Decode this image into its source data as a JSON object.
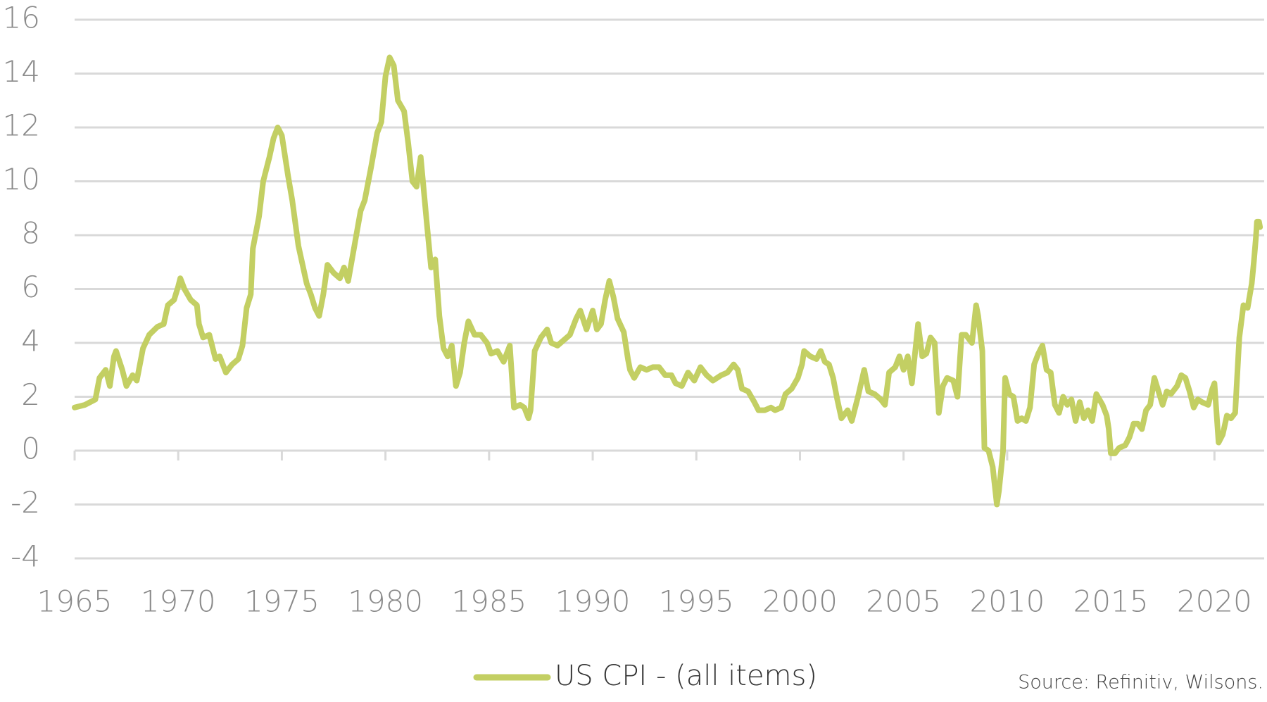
{
  "chart_data": {
    "type": "line",
    "x": [
      1965.0,
      1965.5,
      1966.0,
      1966.2,
      1966.5,
      1966.7,
      1966.9,
      1967.0,
      1967.3,
      1967.5,
      1967.8,
      1968.0,
      1968.3,
      1968.6,
      1969.0,
      1969.3,
      1969.5,
      1969.8,
      1970.0,
      1970.1,
      1970.3,
      1970.6,
      1970.9,
      1971.0,
      1971.2,
      1971.5,
      1971.8,
      1972.0,
      1972.3,
      1972.6,
      1972.9,
      1973.1,
      1973.3,
      1973.5,
      1973.6,
      1973.9,
      1974.1,
      1974.4,
      1974.6,
      1974.8,
      1975.0,
      1975.3,
      1975.5,
      1975.8,
      1976.0,
      1976.2,
      1976.4,
      1976.6,
      1976.8,
      1977.0,
      1977.2,
      1977.5,
      1977.8,
      1978.0,
      1978.2,
      1978.5,
      1978.8,
      1979.0,
      1979.3,
      1979.6,
      1979.8,
      1980.0,
      1980.2,
      1980.4,
      1980.6,
      1980.9,
      1981.1,
      1981.3,
      1981.5,
      1981.7,
      1982.0,
      1982.2,
      1982.4,
      1982.6,
      1982.8,
      1983.0,
      1983.2,
      1983.4,
      1983.6,
      1983.8,
      1984.0,
      1984.3,
      1984.6,
      1984.9,
      1985.1,
      1985.4,
      1985.7,
      1986.0,
      1986.2,
      1986.5,
      1986.7,
      1986.9,
      1987.0,
      1987.2,
      1987.5,
      1987.8,
      1988.0,
      1988.3,
      1988.6,
      1988.9,
      1989.2,
      1989.4,
      1989.7,
      1990.0,
      1990.2,
      1990.4,
      1990.6,
      1990.8,
      1991.0,
      1991.2,
      1991.5,
      1991.7,
      1991.8,
      1992.0,
      1992.3,
      1992.6,
      1992.9,
      1993.2,
      1993.5,
      1993.8,
      1994.0,
      1994.3,
      1994.6,
      1994.9,
      1995.2,
      1995.5,
      1995.8,
      1996.2,
      1996.5,
      1996.8,
      1997.0,
      1997.2,
      1997.5,
      1997.8,
      1998.0,
      1998.3,
      1998.6,
      1998.8,
      1999.1,
      1999.3,
      1999.6,
      1999.9,
      2000.1,
      2000.2,
      2000.5,
      2000.8,
      2001.0,
      2001.2,
      2001.4,
      2001.6,
      2001.8,
      2002.0,
      2002.3,
      2002.5,
      2002.8,
      2003.1,
      2003.3,
      2003.6,
      2003.9,
      2004.1,
      2004.3,
      2004.6,
      2004.8,
      2005.0,
      2005.2,
      2005.4,
      2005.7,
      2005.9,
      2006.1,
      2006.3,
      2006.5,
      2006.7,
      2006.9,
      2007.1,
      2007.4,
      2007.6,
      2007.8,
      2008.0,
      2008.3,
      2008.5,
      2008.6,
      2008.8,
      2008.9,
      2009.1,
      2009.3,
      2009.4,
      2009.5,
      2009.6,
      2009.8,
      2009.9,
      2010.1,
      2010.3,
      2010.5,
      2010.7,
      2010.9,
      2011.1,
      2011.3,
      2011.5,
      2011.7,
      2011.9,
      2012.1,
      2012.3,
      2012.5,
      2012.7,
      2012.9,
      2013.1,
      2013.3,
      2013.5,
      2013.7,
      2013.9,
      2014.1,
      2014.3,
      2014.6,
      2014.8,
      2014.9,
      2015.0,
      2015.2,
      2015.4,
      2015.7,
      2015.9,
      2016.1,
      2016.3,
      2016.5,
      2016.7,
      2016.9,
      2017.1,
      2017.3,
      2017.5,
      2017.7,
      2017.9,
      2018.2,
      2018.4,
      2018.6,
      2018.8,
      2019.0,
      2019.2,
      2019.4,
      2019.7,
      2019.9,
      2020.0,
      2020.2,
      2020.4,
      2020.6,
      2020.8,
      2021.0,
      2021.2,
      2021.4,
      2021.6,
      2021.8,
      2021.9,
      2022.0,
      2022.05,
      2022.15,
      2022.2
    ],
    "series": [
      {
        "name": "US CPI - (all items)",
        "color": "#c3cf63",
        "values": [
          1.6,
          1.7,
          1.9,
          2.7,
          3.0,
          2.4,
          3.5,
          3.7,
          3.0,
          2.4,
          2.8,
          2.6,
          3.8,
          4.3,
          4.6,
          4.7,
          5.4,
          5.6,
          6.1,
          6.4,
          6.0,
          5.6,
          5.4,
          4.7,
          4.2,
          4.3,
          3.4,
          3.5,
          2.9,
          3.2,
          3.4,
          3.9,
          5.3,
          5.8,
          7.5,
          8.7,
          10.0,
          10.9,
          11.6,
          12.0,
          11.7,
          10.2,
          9.3,
          7.6,
          6.9,
          6.2,
          5.8,
          5.3,
          5.0,
          5.8,
          6.9,
          6.6,
          6.4,
          6.8,
          6.3,
          7.6,
          8.9,
          9.3,
          10.5,
          11.8,
          12.2,
          13.9,
          14.6,
          14.3,
          13.0,
          12.6,
          11.4,
          10.0,
          9.8,
          10.9,
          8.4,
          6.8,
          7.1,
          5.0,
          3.8,
          3.5,
          3.9,
          2.4,
          2.9,
          4.0,
          4.8,
          4.3,
          4.3,
          4.0,
          3.6,
          3.7,
          3.3,
          3.9,
          1.6,
          1.7,
          1.6,
          1.2,
          1.5,
          3.7,
          4.2,
          4.5,
          4.0,
          3.9,
          4.1,
          4.3,
          4.9,
          5.2,
          4.5,
          5.2,
          4.5,
          4.7,
          5.6,
          6.3,
          5.7,
          4.9,
          4.4,
          3.4,
          3.0,
          2.7,
          3.1,
          3.0,
          3.1,
          3.1,
          2.8,
          2.8,
          2.5,
          2.4,
          2.9,
          2.6,
          3.1,
          2.8,
          2.6,
          2.8,
          2.9,
          3.2,
          3.0,
          2.3,
          2.2,
          1.8,
          1.5,
          1.5,
          1.6,
          1.5,
          1.6,
          2.1,
          2.3,
          2.7,
          3.2,
          3.7,
          3.5,
          3.4,
          3.7,
          3.3,
          3.2,
          2.7,
          1.9,
          1.2,
          1.5,
          1.1,
          2.0,
          3.0,
          2.2,
          2.1,
          1.9,
          1.7,
          2.9,
          3.1,
          3.5,
          3.0,
          3.5,
          2.5,
          4.7,
          3.5,
          3.6,
          4.2,
          4.0,
          1.4,
          2.4,
          2.7,
          2.6,
          2.0,
          4.3,
          4.3,
          4.0,
          5.4,
          5.0,
          3.7,
          0.1,
          0.0,
          -0.6,
          -1.3,
          -2.0,
          -1.5,
          0.0,
          2.7,
          2.1,
          2.0,
          1.1,
          1.2,
          1.1,
          1.6,
          3.2,
          3.6,
          3.9,
          3.0,
          2.9,
          1.7,
          1.4,
          2.0,
          1.7,
          1.9,
          1.1,
          1.8,
          1.2,
          1.5,
          1.1,
          2.1,
          1.7,
          1.3,
          0.8,
          -0.1,
          -0.1,
          0.1,
          0.2,
          0.5,
          1.0,
          1.0,
          0.8,
          1.5,
          1.7,
          2.7,
          2.2,
          1.7,
          2.2,
          2.1,
          2.4,
          2.8,
          2.7,
          2.2,
          1.6,
          1.9,
          1.8,
          1.7,
          2.3,
          2.5,
          0.3,
          0.6,
          1.3,
          1.2,
          1.4,
          4.2,
          5.4,
          5.3,
          6.2,
          7.0,
          7.9,
          8.5,
          8.5,
          8.3
        ]
      }
    ],
    "xlim": [
      1965,
      2022.4
    ],
    "xticks": [
      1965,
      1970,
      1975,
      1980,
      1985,
      1990,
      1995,
      2000,
      2005,
      2010,
      2015,
      2020
    ],
    "ylim": [
      -4,
      16
    ],
    "yticks": [
      -4,
      -2,
      0,
      2,
      4,
      6,
      8,
      10,
      12,
      14,
      16
    ],
    "grid": true,
    "legend": "bottom",
    "source": "Source: Refinitiv, Wilsons."
  }
}
